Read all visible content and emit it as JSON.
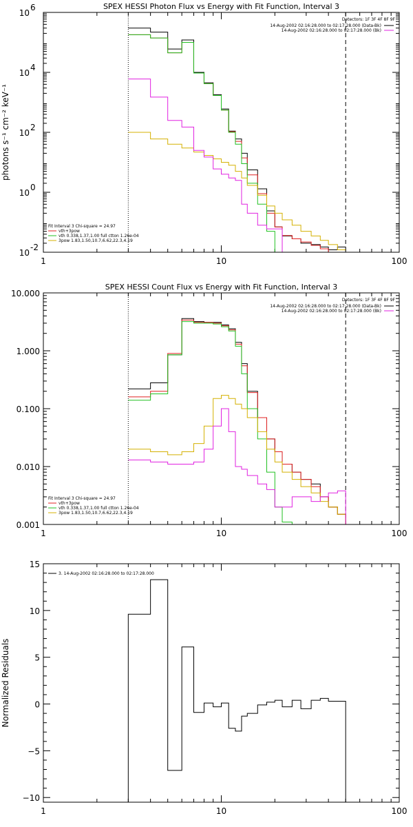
{
  "chart_data": [
    {
      "type": "line",
      "title": "SPEX HESSI Photon Flux vs Energy with Fit Function, Interval 3",
      "ylabel": "photons s⁻¹ cm⁻² keV⁻¹",
      "xlabel": "",
      "xscale": "log",
      "yscale": "log",
      "xlim": [
        1,
        100
      ],
      "ylim": [
        0.01,
        1000000
      ],
      "xticks": [
        "1",
        "10",
        "100"
      ],
      "yticks": [
        {
          "v": 0.01,
          "base": "10",
          "exp": "-2"
        },
        {
          "v": 1,
          "base": "10",
          "exp": "0"
        },
        {
          "v": 100,
          "base": "10",
          "exp": "2"
        },
        {
          "v": 10000,
          "base": "10",
          "exp": "4"
        },
        {
          "v": 1000000,
          "base": "10",
          "exp": "6"
        }
      ],
      "detectors": "Detectors: 1F 3F 4F 8F 9F",
      "legend_right": [
        {
          "text": "14-Aug-2002 02:16:28.000 to 02:17:28.000 (Data-Bk)",
          "color": "#000000"
        },
        {
          "text": "14-Aug-2002 02:16:28.000 to 02:17:28.000 (Bk)",
          "color": "#e020e0"
        }
      ],
      "fit_info": "Fit Interval 3   Chi-square = 24.97",
      "legend_left": [
        {
          "text": "vth+3pow",
          "color": "#e02020"
        },
        {
          "text": "vth 0.338,1.37,1.00  full ctton 1.26e-04",
          "color": "#20c020"
        },
        {
          "text": "3pow  1.83,1.50,10.7,6.62,22.3,4.19",
          "color": "#d4b000"
        }
      ],
      "edges": [
        3,
        4,
        5,
        6,
        7,
        8,
        9,
        10,
        11,
        12,
        13,
        14,
        16,
        18,
        20,
        22,
        25,
        28,
        32,
        36,
        40,
        45,
        50
      ],
      "vlines": [
        {
          "x": 3,
          "style": "dotted"
        },
        {
          "x": 50,
          "style": "dashed"
        }
      ],
      "series": [
        {
          "name": "Data-Bk",
          "color": "#000000",
          "values": [
            300000,
            220000,
            60000,
            120000,
            10000,
            4500,
            1800,
            600,
            110,
            60,
            20,
            5.6,
            1.3,
            0.24,
            0.07,
            0.035,
            0.028,
            0.02,
            0.018,
            0.015,
            0.012,
            0.015
          ]
        },
        {
          "name": "vth+3pow",
          "color": "#e02020",
          "values": [
            180000,
            140000,
            45000,
            100000,
            9500,
            4200,
            1700,
            550,
            105,
            50,
            14,
            3.8,
            0.9,
            0.2,
            0.07,
            0.036,
            0.028,
            0.022,
            0.017,
            0.013,
            0.01,
            0.008
          ]
        },
        {
          "name": "vth",
          "color": "#20c020",
          "values": [
            180000,
            140000,
            45000,
            100000,
            9500,
            4200,
            1700,
            550,
            100,
            40,
            9,
            2,
            0.4,
            0.05,
            0.006,
            0.006,
            0.006,
            0.006,
            0.006,
            0.006,
            0.006,
            0.006
          ]
        },
        {
          "name": "3pow",
          "color": "#d4b000",
          "values": [
            100,
            60,
            40,
            30,
            22,
            17,
            13,
            10,
            8,
            5,
            3,
            1.7,
            0.8,
            0.35,
            0.2,
            0.12,
            0.08,
            0.05,
            0.035,
            0.025,
            0.018,
            0.012
          ]
        },
        {
          "name": "Bk",
          "color": "#e020e0",
          "values": [
            6000,
            1500,
            250,
            150,
            25,
            15,
            6,
            4,
            3,
            2.5,
            0.4,
            0.2,
            0.08,
            0.06,
            0.06,
            0.007,
            0.006,
            0.006,
            0.006,
            0.006,
            0.006,
            0.006
          ]
        }
      ]
    },
    {
      "type": "line",
      "title": "SPEX HESSI Count Flux vs Energy with Fit Function, Interval 3",
      "ylabel": "",
      "xlabel": "",
      "xscale": "log",
      "yscale": "log",
      "xlim": [
        1,
        100
      ],
      "ylim": [
        0.001,
        10
      ],
      "xticks": [
        "1",
        "10",
        "100"
      ],
      "yticks": [
        {
          "v": 0.001,
          "label": "0.001"
        },
        {
          "v": 0.01,
          "label": "0.010"
        },
        {
          "v": 0.1,
          "label": "0.100"
        },
        {
          "v": 1,
          "label": "1.000"
        },
        {
          "v": 10,
          "label": "10.000"
        }
      ],
      "detectors": "Detectors: 1F 3F 4F 8F 9F",
      "legend_right": [
        {
          "text": "14-Aug-2002 02:16:28.000 to 02:17:28.000 (Data-Bk)",
          "color": "#000000"
        },
        {
          "text": "14-Aug-2002 02:16:28.000 to 02:17:28.000 (Bk)",
          "color": "#e020e0"
        }
      ],
      "fit_info": "Fit Interval 3   Chi-square = 24.97",
      "legend_left": [
        {
          "text": "vth+3pow",
          "color": "#e02020"
        },
        {
          "text": "vth 0.338,1.37,1.00  full ctton 1.26e-04",
          "color": "#20c020"
        },
        {
          "text": "3pow  1.83,1.50,10.7,6.62,22.3,4.19",
          "color": "#d4b000"
        }
      ],
      "edges": [
        3,
        4,
        5,
        6,
        7,
        8,
        9,
        10,
        11,
        12,
        13,
        14,
        16,
        18,
        20,
        22,
        25,
        28,
        32,
        36,
        40,
        45,
        50,
        55
      ],
      "vlines": [
        {
          "x": 3,
          "style": "dotted"
        },
        {
          "x": 50,
          "style": "dashed"
        }
      ],
      "series": [
        {
          "name": "Data-Bk",
          "color": "#000000",
          "values": [
            0.22,
            0.28,
            0.85,
            3.6,
            3.2,
            3.1,
            3.1,
            2.8,
            2.4,
            1.4,
            0.6,
            0.2,
            0.07,
            0.03,
            0.018,
            0.011,
            0.008,
            0.006,
            0.005,
            0.003,
            0.002,
            0.0015,
            0.001
          ]
        },
        {
          "name": "vth+3pow",
          "color": "#e02020",
          "values": [
            0.16,
            0.2,
            0.9,
            3.4,
            3.1,
            3.1,
            3.0,
            2.7,
            2.3,
            1.3,
            0.55,
            0.19,
            0.07,
            0.03,
            0.018,
            0.011,
            0.008,
            0.006,
            0.0045,
            0.003,
            0.002,
            0.0015,
            0.001
          ]
        },
        {
          "name": "vth",
          "color": "#20c020",
          "values": [
            0.14,
            0.18,
            0.85,
            3.2,
            3.0,
            3.0,
            2.9,
            2.6,
            2.2,
            1.2,
            0.4,
            0.1,
            0.03,
            0.008,
            0.002,
            0.0011,
            0.0008,
            0.0008,
            0.0008,
            0.0008,
            0.0008,
            0.0008,
            0.0008
          ]
        },
        {
          "name": "3pow",
          "color": "#d4b000",
          "values": [
            0.02,
            0.018,
            0.016,
            0.018,
            0.025,
            0.05,
            0.15,
            0.17,
            0.15,
            0.12,
            0.1,
            0.07,
            0.04,
            0.02,
            0.012,
            0.008,
            0.006,
            0.0045,
            0.0035,
            0.0025,
            0.002,
            0.0015,
            0.001
          ]
        },
        {
          "name": "Bk",
          "color": "#e020e0",
          "values": [
            0.013,
            0.012,
            0.011,
            0.011,
            0.012,
            0.02,
            0.05,
            0.1,
            0.04,
            0.01,
            0.009,
            0.007,
            0.005,
            0.004,
            0.002,
            0.002,
            0.003,
            0.003,
            0.0025,
            0.003,
            0.0035,
            0.0038,
            0.0008
          ]
        }
      ]
    },
    {
      "type": "line",
      "title": "",
      "ylabel": "Normalized Residuals",
      "xlabel": "",
      "xscale": "log",
      "yscale": "linear",
      "xlim": [
        1,
        100
      ],
      "ylim": [
        -10.5,
        15
      ],
      "xticks": [
        "1",
        "10",
        "100"
      ],
      "yticks": [
        {
          "v": -10,
          "label": "−10"
        },
        {
          "v": -5,
          "label": "−5"
        },
        {
          "v": 0,
          "label": "0"
        },
        {
          "v": 5,
          "label": "5"
        },
        {
          "v": 10,
          "label": "10"
        },
        {
          "v": 15,
          "label": "15"
        }
      ],
      "legend_left": [
        {
          "text": "3. 14-Aug-2002 02:16:28.000 to 02:17:28.000",
          "color": "#000000"
        }
      ],
      "edges": [
        3,
        4,
        5,
        6,
        7,
        8,
        9,
        10,
        11,
        12,
        13,
        14,
        16,
        18,
        20,
        22,
        25,
        28,
        32,
        36,
        40,
        45,
        50
      ],
      "series": [
        {
          "name": "3. 14-Aug-2002 02:16:28.000 to 02:17:28.000",
          "color": "#000000",
          "values": [
            9.6,
            13.3,
            -7.1,
            6.1,
            -0.9,
            0.1,
            -0.3,
            0.1,
            -2.6,
            -2.9,
            -1.3,
            -1.0,
            -0.1,
            0.2,
            0.4,
            -0.3,
            0.4,
            -0.5,
            0.4,
            0.6,
            0.3,
            0.3
          ]
        }
      ]
    }
  ]
}
